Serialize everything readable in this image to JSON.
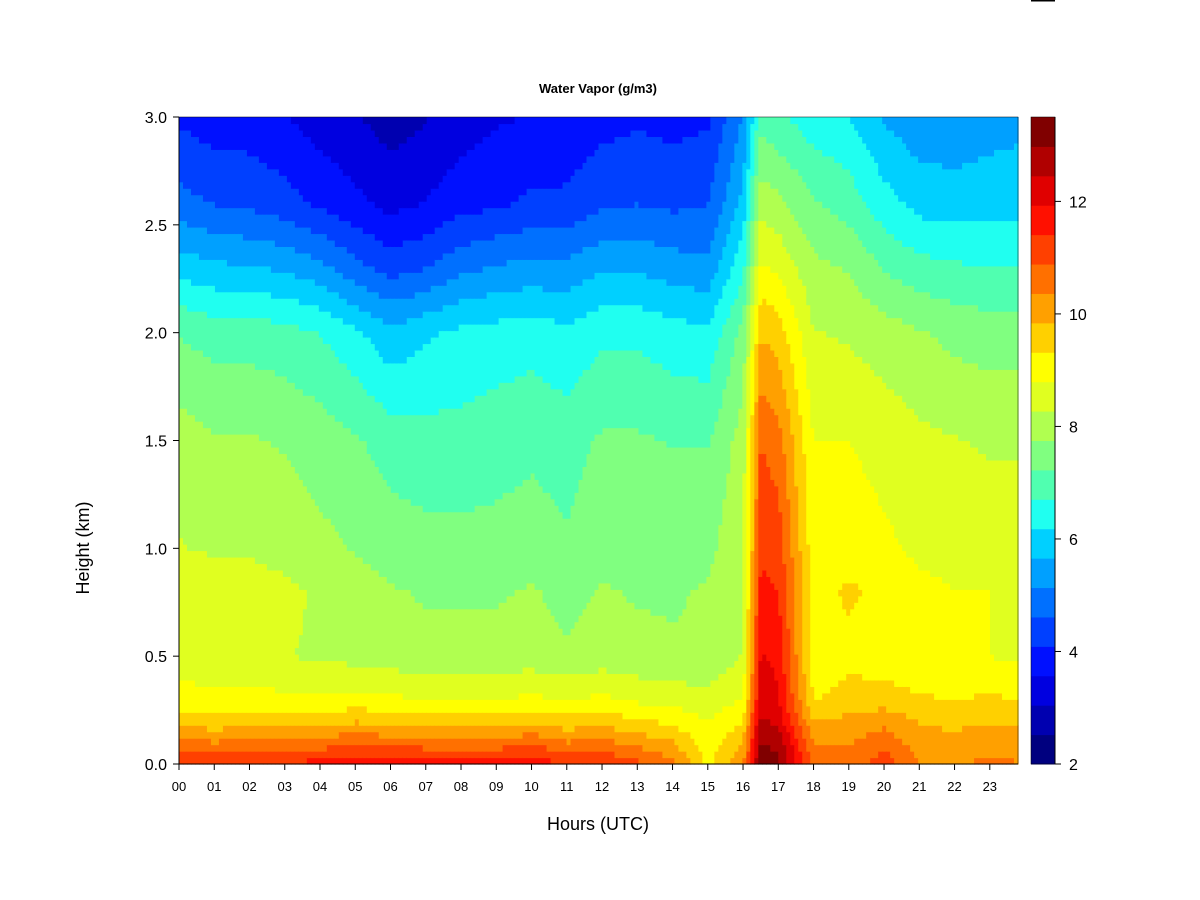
{
  "chart_data": {
    "type": "heatmap",
    "title": "Water Vapor (g/m3)",
    "xlabel": "Hours (UTC)",
    "ylabel": "Height (km)",
    "xlim": [
      0,
      23.8
    ],
    "ylim": [
      0.0,
      3.0
    ],
    "x_ticks": [
      "00",
      "01",
      "02",
      "03",
      "04",
      "05",
      "06",
      "07",
      "08",
      "09",
      "10",
      "11",
      "12",
      "13",
      "14",
      "15",
      "16",
      "17",
      "18",
      "19",
      "20",
      "21",
      "22",
      "23"
    ],
    "y_ticks": [
      "0.0",
      "0.5",
      "1.0",
      "1.5",
      "2.0",
      "2.5",
      "3.0"
    ],
    "colorbar": {
      "range": [
        2,
        13.5
      ],
      "ticks": [
        "2",
        "4",
        "6",
        "8",
        "10",
        "12"
      ],
      "levels": [
        "#00007f",
        "#0000b0",
        "#0000e0",
        "#0010ff",
        "#0040ff",
        "#0070ff",
        "#00a0ff",
        "#00d0ff",
        "#20fff0",
        "#50ffb0",
        "#80ff80",
        "#b0ff50",
        "#e0ff20",
        "#ffff00",
        "#ffd000",
        "#ffa000",
        "#ff7000",
        "#ff4000",
        "#ff1000",
        "#e00000",
        "#b00000",
        "#800000"
      ]
    },
    "heights_km": [
      0.0,
      0.1,
      0.2,
      0.3,
      0.5,
      0.8,
      1.0,
      1.5,
      2.0,
      2.3,
      2.6,
      3.0
    ],
    "hours": [
      0,
      1,
      2,
      3,
      4,
      5,
      6,
      7,
      8,
      9,
      10,
      11,
      12,
      13,
      14,
      15,
      16,
      16.5,
      17,
      18,
      19,
      20,
      21,
      22,
      23,
      23.8
    ],
    "values": [
      [
        11.5,
        10.5,
        9.6,
        9.0,
        8.5,
        8.7,
        8.3,
        8.0,
        7.2,
        6.0,
        4.8,
        4.0
      ],
      [
        11.3,
        10.4,
        9.5,
        9.0,
        8.4,
        8.6,
        8.2,
        7.8,
        7.0,
        5.8,
        4.6,
        3.8
      ],
      [
        11.4,
        10.5,
        9.6,
        9.0,
        8.4,
        8.5,
        8.2,
        7.8,
        7.0,
        5.7,
        4.5,
        3.8
      ],
      [
        11.5,
        10.5,
        9.5,
        8.9,
        8.3,
        8.4,
        8.1,
        7.7,
        6.9,
        5.6,
        4.3,
        3.6
      ],
      [
        11.6,
        10.6,
        9.6,
        8.9,
        8.2,
        8.2,
        7.9,
        7.5,
        6.7,
        5.3,
        4.0,
        3.3
      ],
      [
        11.9,
        10.8,
        9.8,
        9.0,
        8.1,
        8.0,
        7.7,
        7.3,
        6.3,
        4.8,
        3.7,
        3.1
      ],
      [
        11.8,
        10.7,
        9.6,
        8.9,
        8.0,
        7.8,
        7.5,
        7.0,
        5.8,
        4.4,
        3.4,
        2.8
      ],
      [
        11.7,
        10.6,
        9.5,
        8.8,
        7.9,
        7.7,
        7.4,
        6.9,
        6.1,
        4.6,
        3.6,
        3.0
      ],
      [
        11.6,
        10.6,
        9.5,
        8.8,
        7.9,
        7.7,
        7.4,
        6.9,
        6.3,
        5.0,
        3.9,
        3.3
      ],
      [
        11.6,
        10.6,
        9.5,
        8.8,
        7.9,
        7.7,
        7.4,
        7.0,
        6.4,
        5.2,
        4.0,
        3.5
      ],
      [
        11.9,
        10.8,
        9.7,
        8.9,
        8.0,
        7.8,
        7.5,
        7.1,
        6.5,
        5.3,
        4.2,
        3.6
      ],
      [
        11.3,
        10.4,
        9.5,
        8.8,
        7.8,
        7.6,
        7.3,
        7.0,
        6.3,
        5.3,
        4.2,
        3.7
      ],
      [
        11.5,
        10.5,
        9.6,
        8.9,
        8.0,
        7.8,
        7.6,
        7.3,
        6.6,
        5.6,
        4.5,
        3.9
      ],
      [
        11.0,
        10.2,
        9.4,
        8.7,
        7.9,
        7.7,
        7.5,
        7.3,
        6.6,
        5.6,
        4.6,
        4.0
      ],
      [
        10.5,
        9.9,
        9.2,
        8.6,
        7.8,
        7.7,
        7.5,
        7.2,
        6.4,
        5.4,
        4.5,
        3.9
      ],
      [
        9.2,
        9.0,
        8.8,
        8.5,
        7.8,
        7.8,
        7.6,
        7.2,
        6.3,
        5.3,
        4.6,
        4.0
      ],
      [
        10.3,
        9.8,
        9.3,
        8.8,
        8.3,
        8.3,
        8.2,
        8.0,
        7.4,
        6.6,
        5.8,
        5.2
      ],
      [
        13.3,
        13.0,
        12.6,
        12.2,
        12.0,
        11.6,
        11.3,
        10.9,
        9.8,
        8.9,
        8.1,
        7.0
      ],
      [
        13.1,
        12.8,
        12.3,
        12.0,
        11.8,
        11.4,
        11.2,
        10.6,
        9.6,
        8.7,
        7.9,
        6.8
      ],
      [
        10.8,
        10.4,
        9.8,
        9.3,
        9.0,
        9.1,
        9.0,
        8.8,
        8.3,
        7.9,
        7.3,
        6.4
      ],
      [
        10.6,
        10.3,
        10.0,
        9.5,
        9.2,
        9.4,
        9.1,
        8.8,
        8.2,
        7.7,
        7.0,
        6.2
      ],
      [
        11.2,
        10.7,
        10.2,
        9.6,
        9.0,
        9.2,
        8.9,
        8.6,
        8.0,
        7.2,
        6.4,
        5.6
      ],
      [
        10.4,
        10.1,
        9.8,
        9.4,
        8.8,
        8.9,
        8.7,
        8.4,
        7.8,
        6.9,
        6.0,
        5.3
      ],
      [
        10.3,
        10.0,
        9.7,
        9.3,
        8.8,
        8.8,
        8.7,
        8.3,
        7.6,
        6.8,
        5.9,
        5.3
      ],
      [
        10.5,
        10.2,
        9.8,
        9.4,
        8.8,
        8.8,
        8.6,
        8.2,
        7.5,
        6.7,
        6.0,
        5.4
      ],
      [
        10.4,
        10.1,
        9.8,
        9.3,
        8.7,
        8.7,
        8.6,
        8.2,
        7.5,
        6.7,
        6.0,
        5.5
      ]
    ]
  }
}
